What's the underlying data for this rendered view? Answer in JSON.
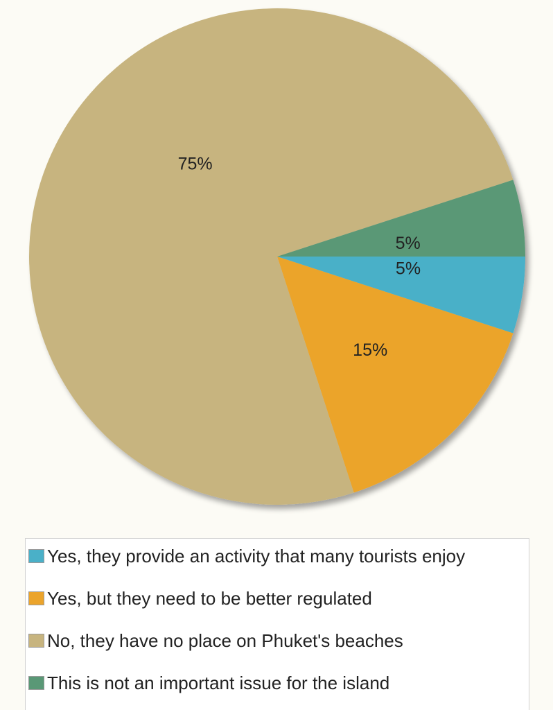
{
  "chart_data": {
    "type": "pie",
    "title": "",
    "start": "3 o'clock, clockwise",
    "slices": [
      {
        "label": "Yes, they provide an activity that many tourists enjoy",
        "value": 5,
        "display": "5%",
        "color": "#4ab0c8"
      },
      {
        "label": "Yes, but they need to be better regulated",
        "value": 15,
        "display": "15%",
        "color": "#eba42c"
      },
      {
        "label": "No, they have no place on Phuket's beaches",
        "value": 75,
        "display": "75%",
        "color": "#c7b47f"
      },
      {
        "label": "This is not an important issue for the island",
        "value": 5,
        "display": "5%",
        "color": "#5a9876"
      }
    ],
    "legend_position": "bottom"
  }
}
